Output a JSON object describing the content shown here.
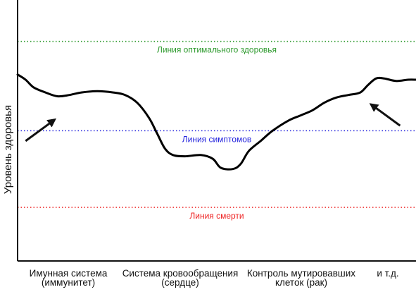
{
  "chart_data": {
    "type": "line",
    "ylabel": "Уровень здоровья",
    "xlabel": "",
    "title": "",
    "categories": [
      [
        "Имунная система",
        "(иммунитет)"
      ],
      [
        "Система кровообращения",
        "(сердце)"
      ],
      [
        "Контроль мутировавших",
        "клеток (рак)"
      ],
      [
        "и т.д."
      ]
    ],
    "xlim": [
      0,
      100
    ],
    "ylim": [
      0,
      100
    ],
    "reference_lines": [
      {
        "label": "Линия оптимального здоровья",
        "y": 86,
        "color": "#2e9a2e"
      },
      {
        "label": "Линия симптомов",
        "y": 51,
        "color": "#2222dd"
      },
      {
        "label": "Линия смерти",
        "y": 21,
        "color": "#ee2222"
      }
    ],
    "series": [
      {
        "color": "#000000",
        "points": [
          [
            0,
            73
          ],
          [
            2,
            71
          ],
          [
            4,
            68
          ],
          [
            7,
            66
          ],
          [
            10,
            64.5
          ],
          [
            13,
            65
          ],
          [
            16,
            66
          ],
          [
            20,
            66.5
          ],
          [
            24,
            66
          ],
          [
            27,
            65
          ],
          [
            30,
            62
          ],
          [
            33,
            56
          ],
          [
            35,
            50
          ],
          [
            37,
            44
          ],
          [
            39,
            41.5
          ],
          [
            42,
            41
          ],
          [
            46,
            41.5
          ],
          [
            49,
            40
          ],
          [
            51,
            36.5
          ],
          [
            54,
            36
          ],
          [
            56,
            38
          ],
          [
            58,
            43
          ],
          [
            61,
            47
          ],
          [
            64,
            51
          ],
          [
            68,
            55
          ],
          [
            71,
            57
          ],
          [
            74,
            59
          ],
          [
            77,
            62
          ],
          [
            80,
            64
          ],
          [
            83,
            65
          ],
          [
            86,
            66
          ],
          [
            88,
            69
          ],
          [
            90,
            71.5
          ],
          [
            92,
            71.5
          ],
          [
            95,
            70.5
          ],
          [
            98,
            71
          ],
          [
            100,
            71
          ]
        ]
      }
    ],
    "arrows": [
      {
        "from": [
          2,
          47
        ],
        "to": [
          9,
          55
        ]
      },
      {
        "from": [
          96,
          53
        ],
        "to": [
          89,
          61
        ]
      }
    ],
    "grid": false,
    "legend": "none"
  }
}
